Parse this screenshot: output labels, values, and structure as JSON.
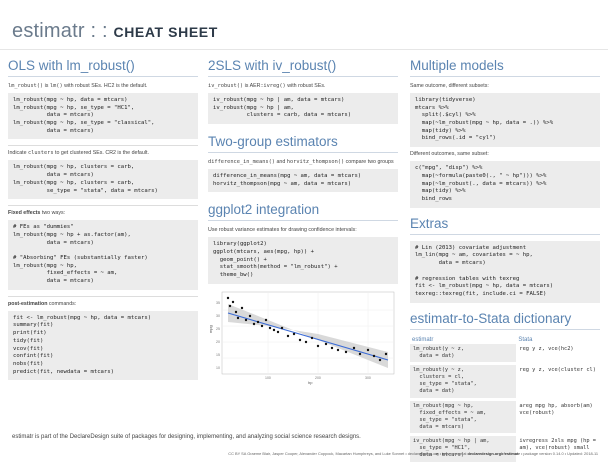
{
  "header": {
    "title_light": "estimatr : : ",
    "title_bold": "CHEAT SHEET"
  },
  "col1": {
    "title": "OLS with lm_robust()",
    "note1_pre": "lm_robust()",
    "note1_mid": " is ",
    "note1_code": "lm()",
    "note1_post": " with robust SEs. HC2 is the default.",
    "code1": "lm_robust(mpg ~ hp, data = mtcars)\nlm_robust(mpg ~ hp, se_type = \"HC1\",\n          data = mtcars)\nlm_robust(mpg ~ hp, se_type = \"classical\",\n          data = mtcars)",
    "note2_pre": "Indicate ",
    "note2_code": "clusters",
    "note2_post": " to get clustered SEs. CR2 is the default.",
    "code2": "lm_robust(mpg ~ hp, clusters = carb,\n          data = mtcars)\nlm_robust(mpg ~ hp, clusters = carb,\n          se_type = \"stata\", data = mtcars)",
    "note3_bold": "Fixed effects",
    "note3_post": " two ways:",
    "code3": "# FEs as \"dummies\"\nlm_robust(mpg ~ hp + as.factor(am),\n          data = mtcars)\n\n# \"Absorbing\" FEs (substantially faster)\nlm_robust(mpg ~ hp,\n          fixed_effects = ~ am,\n          data = mtcars)",
    "note4_bold": "post-estimation",
    "note4_post": " commands:",
    "code4": "fit <- lm_robust(mpg ~ hp, data = mtcars)\nsummary(fit)\nprint(fit)\ntidy(fit)\nvcov(fit)\nconfint(fit)\nnobs(fit)\npredict(fit, newdata = mtcars)"
  },
  "col2": {
    "title": "2SLS with iv_robust()",
    "note1_pre": "iv_robust()",
    "note1_mid": " is AER::",
    "note1_code": "ivreg()",
    "note1_post": " with robust SEs.",
    "code1": "iv_robust(mpg ~ hp | am, data = mtcars)\niv_robust(mpg ~ hp | am,\n          clusters = carb, data = mtcars)",
    "title2": "Two-group estimators",
    "note2_code1": "difference_in_means()",
    "note2_mid": " and ",
    "note2_code2": "horvitz_thompson()",
    "note2_post": " compare two groups",
    "code2": "difference_in_means(mpg ~ am, data = mtcars)\nhorvitz_thompson(mpg ~ am, data = mtcars)",
    "title3": "ggplot2 integration",
    "note3": "Use robust variance estimates for drawing confidence intervals:",
    "code3": "library(ggplot2)\nggplot(mtcars, aes(mpg, hp)) +\n  geom_point() +\n  stat_smooth(method = \"lm_robust\") +\n  theme_bw()",
    "plot": {
      "xlabel": "hp",
      "ylabel": "mpg",
      "xticks": [
        "100",
        "200",
        "300"
      ],
      "yticks": [
        "10",
        "15",
        "20",
        "25",
        "30",
        "35"
      ]
    }
  },
  "col3": {
    "title": "Multiple models",
    "note1": "Same outcome, different subsets:",
    "code1": "library(tidyverse)\nmtcars %>%\n  split(.$cyl) %>%\n  map(~lm_robust(mpg ~ hp, data = .)) %>%\n  map(tidy) %>%\n  bind_rows(.id = \"cyl\")",
    "note2": "Different outcomes, same subset:",
    "code2": "c(\"mpg\", \"disp\") %>%\n  map(~formula(paste0(., \" ~ hp\"))) %>%\n  map(~lm_robust(., data = mtcars)) %>%\n  map(tidy) %>%\n  bind_rows",
    "title2": "Extras",
    "code3": "# Lin (2013) covariate adjustment\nlm_lin(mpg ~ am, covariates = ~ hp,\n       data = mtcars)\n\n# regression tables with texreg\nfit <- lm_robust(mpg ~ hp, data = mtcars)\ntexreg::texreg(fit, include.ci = FALSE)",
    "title3": "estimatr-to-Stata dictionary",
    "dict_head": [
      "estimatr",
      "Stata"
    ],
    "dict_rows": [
      {
        "r": "lm_robust(y ~ z,\n  data = dat)",
        "s": "reg y z, vce(hc2)"
      },
      {
        "r": "lm_robust(y ~ z,\n  clusters = cl,\n  se_type = \"stata\",\n  data = dat)",
        "s": "reg y z, vce(cluster cl)"
      },
      {
        "r": "lm_robust(mpg ~ hp,\n  fixed_effects = ~ am,\n  se_type = \"stata\",\n  data = mtcars)",
        "s": "areg mpg hp, absorb(am)\nvce(robust)"
      },
      {
        "r": "iv_robust(mpg ~ hp | am,\n  se_type = \"HC1\",\n  data = mtcars)",
        "s": "ivregress 2sls mpg (hp =\nam), vce(robust) small"
      }
    ]
  },
  "footer": {
    "text": "estimatr is part of the DeclareDesign suite of packages for designing, implementing, and analyzing social science research designs.",
    "credits_pre": "CC BY SA Graeme Blair, Jasper Cooper, Alexander Coppock, Macartan Humphreys, and Luke Sonnet • declaredesign.org • Learn more at ",
    "credits_link": "declaredesign.org/r/estimatr",
    "credits_post": " • package version 0.14.0 • Updated: 2018-11"
  }
}
